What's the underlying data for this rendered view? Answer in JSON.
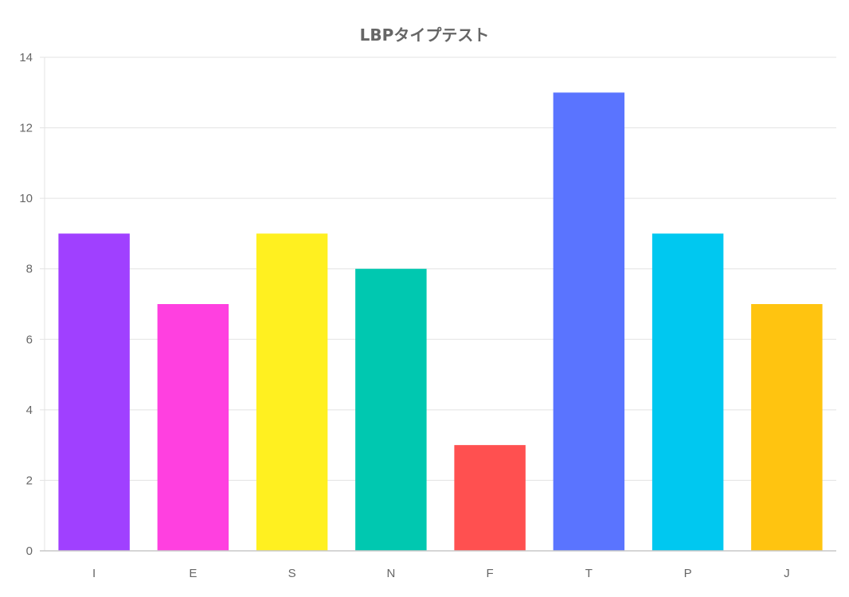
{
  "chart_data": {
    "type": "bar",
    "title": "LBPタイプテスト",
    "xlabel": "",
    "ylabel": "",
    "categories": [
      "I",
      "E",
      "S",
      "N",
      "F",
      "T",
      "P",
      "J"
    ],
    "values": [
      9,
      7,
      9,
      8,
      3,
      13,
      9,
      7
    ],
    "colors": [
      "#a040ff",
      "#ff40e0",
      "#fff020",
      "#00c8b0",
      "#ff5050",
      "#5a74ff",
      "#00c8f0",
      "#ffc410"
    ],
    "ylim": [
      0,
      14
    ],
    "yticks": [
      "0",
      "2",
      "4",
      "6",
      "8",
      "10",
      "12",
      "14"
    ],
    "grid": true,
    "legend": "none"
  }
}
